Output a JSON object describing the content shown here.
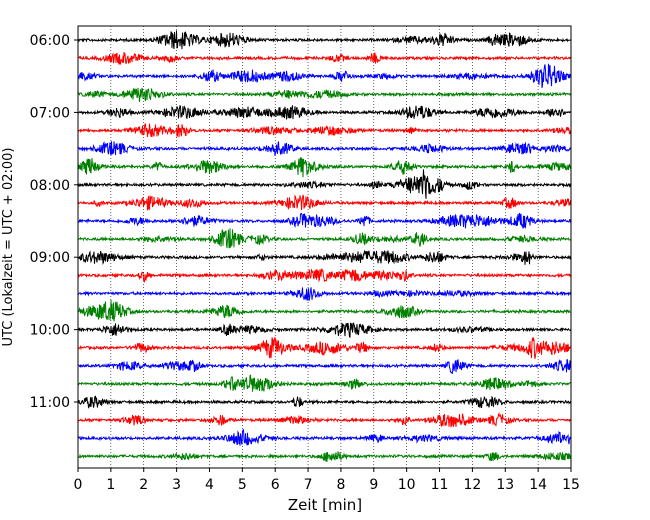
{
  "chart_data": {
    "type": "line",
    "title": "",
    "xlabel": "Zeit  [min]",
    "ylabel": "UTC (Lokalzeit = UTC + 02:00)",
    "xlim": [
      0,
      15
    ],
    "x_ticks": [
      "0",
      "1",
      "2",
      "3",
      "4",
      "5",
      "6",
      "7",
      "8",
      "9",
      "10",
      "11",
      "12",
      "13",
      "14",
      "15"
    ],
    "y_tick_labels": [
      "06:00",
      "07:00",
      "08:00",
      "09:00",
      "10:00",
      "11:00"
    ],
    "grid": {
      "vertical_dotted": true
    },
    "series_colors": [
      "#000000",
      "#ff0000",
      "#0000ff",
      "#008000"
    ],
    "traces": [
      {
        "start": "06:00",
        "color": "#000000"
      },
      {
        "start": "06:15",
        "color": "#ff0000"
      },
      {
        "start": "06:30",
        "color": "#0000ff"
      },
      {
        "start": "06:45",
        "color": "#008000"
      },
      {
        "start": "07:00",
        "color": "#000000"
      },
      {
        "start": "07:15",
        "color": "#ff0000"
      },
      {
        "start": "07:30",
        "color": "#0000ff"
      },
      {
        "start": "07:45",
        "color": "#008000"
      },
      {
        "start": "08:00",
        "color": "#000000"
      },
      {
        "start": "08:15",
        "color": "#ff0000"
      },
      {
        "start": "08:30",
        "color": "#0000ff"
      },
      {
        "start": "08:45",
        "color": "#008000"
      },
      {
        "start": "09:00",
        "color": "#000000"
      },
      {
        "start": "09:15",
        "color": "#ff0000"
      },
      {
        "start": "09:30",
        "color": "#0000ff"
      },
      {
        "start": "09:45",
        "color": "#008000"
      },
      {
        "start": "10:00",
        "color": "#000000"
      },
      {
        "start": "10:15",
        "color": "#ff0000"
      },
      {
        "start": "10:30",
        "color": "#0000ff"
      },
      {
        "start": "10:45",
        "color": "#008000"
      },
      {
        "start": "11:00",
        "color": "#000000"
      },
      {
        "start": "11:15",
        "color": "#ff0000"
      },
      {
        "start": "11:30",
        "color": "#0000ff"
      },
      {
        "start": "11:45",
        "color": "#008000"
      }
    ]
  }
}
